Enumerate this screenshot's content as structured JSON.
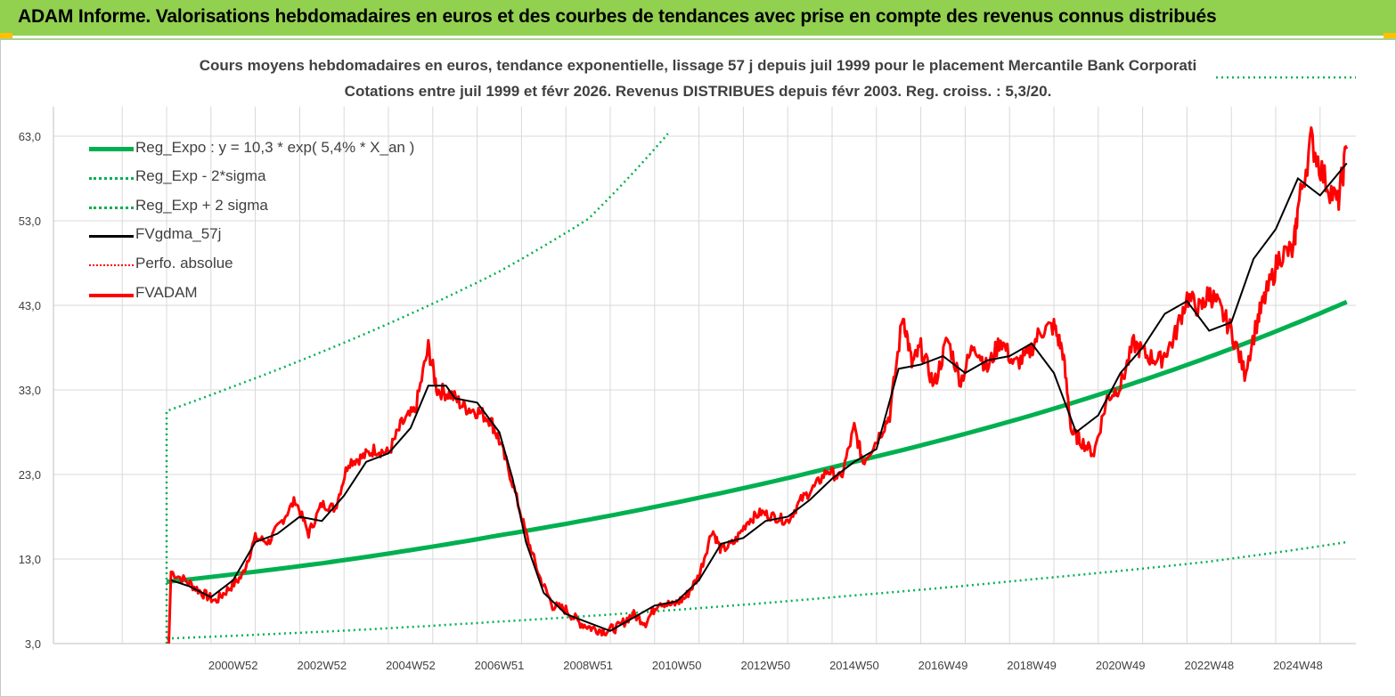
{
  "header": {
    "title": "ADAM Informe. Valorisations hebdomadaires en euros et des courbes de tendances avec prise en compte des revenus connus distribués"
  },
  "colors": {
    "header_bg": "#92d050",
    "accent": "#ffc000",
    "reg_green": "#00b050",
    "fv_black": "#000000",
    "fvadam_red": "#ff0000",
    "text": "#404040"
  },
  "chart_data": {
    "type": "line",
    "title": "Cours moyens hebdomadaires en euros, tendance exponentielle, lissage 57 j depuis juil 1999 pour le placement Mercantile Bank Corporati",
    "subtitle": "Cotations entre juil 1999 et févr 2026. Revenus DISTRIBUES depuis févr 2003. Reg. croiss. : 5,3/20.",
    "xlabel": "",
    "ylabel": "",
    "ylim": [
      3,
      66.5
    ],
    "yticks": [
      "3,0",
      "13,0",
      "23,0",
      "33,0",
      "43,0",
      "53,0",
      "63,0"
    ],
    "xticks": [
      "2000W52",
      "2002W52",
      "2004W52",
      "2006W51",
      "2008W51",
      "2010W50",
      "2012W50",
      "2014W50",
      "2016W49",
      "2018W49",
      "2020W49",
      "2022W48",
      "2024W48"
    ],
    "xtick_years": [
      2001,
      2003,
      2005,
      2007,
      2009,
      2011,
      2013,
      2015,
      2017,
      2019,
      2021,
      2023,
      2025
    ],
    "grid": true,
    "legend_position": "top-left",
    "series": [
      {
        "name": "Reg_Expo : y = 10,3 * exp( 5,4% *  X_an )",
        "style": "solid-thick",
        "color": "#00b050",
        "x": [
          1999.5,
          2003,
          2007,
          2011,
          2015,
          2019,
          2023,
          2026.1
        ],
        "y": [
          10.3,
          12.5,
          15.8,
          19.7,
          24.5,
          30.0,
          36.9,
          43.4
        ]
      },
      {
        "name": "Reg_Exp - 2*sigma",
        "style": "dotted",
        "color": "#00b050",
        "x": [
          1999.5,
          2003,
          2007,
          2011,
          2015,
          2019,
          2023,
          2026.1
        ],
        "y": [
          3.6,
          4.4,
          5.6,
          7.0,
          8.7,
          10.6,
          12.7,
          15.0
        ]
      },
      {
        "name": "Reg_Exp + 2 sigma",
        "style": "dotted",
        "color": "#00b050",
        "x": [
          1999.5,
          1999.5,
          2001,
          2003,
          2005,
          2007,
          2009,
          2010.8
        ],
        "y": [
          3.0,
          30.5,
          33.4,
          37.5,
          42.0,
          47.0,
          53.2,
          63.3
        ]
      },
      {
        "name": "FVgdma_57j",
        "style": "solid",
        "color": "#000000",
        "x": [
          1999.6,
          2000,
          2000.5,
          2001,
          2001.5,
          2002,
          2002.5,
          2003,
          2003.5,
          2004,
          2004.5,
          2005,
          2005.4,
          2005.8,
          2006,
          2006.5,
          2007,
          2007.3,
          2007.6,
          2008,
          2008.5,
          2009,
          2009.5,
          2010,
          2010.5,
          2011,
          2011.5,
          2012,
          2012.5,
          2013,
          2013.5,
          2014,
          2014.5,
          2015,
          2015.5,
          2016,
          2016.5,
          2017,
          2017.5,
          2018,
          2018.5,
          2019,
          2019.5,
          2020,
          2020.5,
          2021,
          2021.5,
          2022,
          2022.5,
          2023,
          2023.5,
          2024,
          2024.5,
          2025,
          2025.5,
          2026.1
        ],
        "y": [
          10.5,
          9.8,
          8.5,
          10.5,
          15.0,
          16.0,
          18.0,
          17.5,
          20.5,
          24.5,
          25.5,
          28.5,
          33.5,
          33.5,
          32.0,
          31.5,
          28.0,
          22.5,
          15.0,
          9.0,
          6.5,
          5.5,
          4.5,
          6.0,
          7.5,
          8.0,
          10.5,
          14.8,
          15.5,
          17.5,
          18.0,
          20.0,
          22.5,
          24.5,
          26.0,
          35.5,
          36.0,
          37.0,
          35.0,
          36.5,
          37.0,
          38.5,
          35.0,
          28.0,
          30.0,
          35.0,
          38.0,
          42.0,
          43.5,
          40.0,
          41.0,
          48.5,
          52.0,
          58.0,
          56.0,
          59.8
        ]
      },
      {
        "name": "Perfo. absolue",
        "style": "dotted",
        "color": "#ff0000",
        "x": [],
        "y": []
      },
      {
        "name": "FVADAM",
        "style": "solid",
        "color": "#ff0000",
        "x": [
          1999.55,
          1999.6,
          2000,
          2000.3,
          2000.6,
          2000.9,
          2001.2,
          2001.5,
          2001.8,
          2002.1,
          2002.4,
          2002.7,
          2003.0,
          2003.3,
          2003.6,
          2003.9,
          2004.2,
          2004.5,
          2004.8,
          2005.1,
          2005.4,
          2005.6,
          2005.9,
          2006.2,
          2006.5,
          2006.8,
          2007.0,
          2007.3,
          2007.6,
          2007.9,
          2008.2,
          2008.5,
          2008.8,
          2009.1,
          2009.4,
          2009.7,
          2010.0,
          2010.3,
          2010.6,
          2010.9,
          2011.2,
          2011.5,
          2011.8,
          2012.0,
          2012.3,
          2012.6,
          2012.9,
          2013.2,
          2013.5,
          2013.8,
          2014.1,
          2014.4,
          2014.7,
          2015.0,
          2015.2,
          2015.5,
          2015.8,
          2016.1,
          2016.3,
          2016.5,
          2016.8,
          2017.1,
          2017.4,
          2017.7,
          2018.0,
          2018.3,
          2018.6,
          2018.9,
          2019.2,
          2019.5,
          2019.7,
          2019.9,
          2020.1,
          2020.4,
          2020.7,
          2021.0,
          2021.3,
          2021.6,
          2021.9,
          2022.2,
          2022.5,
          2022.8,
          2023.0,
          2023.2,
          2023.5,
          2023.8,
          2024.1,
          2024.3,
          2024.6,
          2024.9,
          2025.0,
          2025.3,
          2025.6,
          2025.9,
          2026.1
        ],
        "y": [
          3.0,
          11.5,
          10.2,
          9.0,
          8.0,
          9.5,
          11.0,
          15.5,
          15.0,
          17.5,
          20.0,
          16.0,
          19.5,
          19.0,
          24.5,
          25.0,
          26.0,
          25.5,
          29.0,
          30.5,
          38.0,
          33.0,
          32.5,
          31.0,
          30.5,
          29.5,
          27.0,
          22.0,
          16.0,
          11.0,
          7.5,
          7.0,
          5.5,
          4.8,
          4.5,
          5.0,
          6.5,
          5.5,
          8.0,
          7.5,
          8.5,
          11.0,
          16.5,
          14.0,
          15.0,
          17.5,
          18.5,
          18.0,
          17.5,
          20.0,
          21.5,
          23.5,
          22.5,
          28.5,
          24.5,
          27.0,
          30.0,
          42.0,
          36.0,
          38.0,
          33.5,
          39.0,
          34.0,
          38.5,
          35.5,
          39.0,
          36.0,
          37.0,
          40.0,
          40.5,
          37.5,
          28.0,
          27.0,
          25.5,
          32.0,
          33.5,
          38.5,
          37.0,
          36.5,
          39.0,
          44.0,
          42.5,
          44.5,
          43.0,
          40.0,
          35.0,
          41.5,
          44.5,
          49.0,
          49.5,
          54.5,
          62.5,
          58.0,
          55.0,
          61.5
        ]
      }
    ]
  }
}
